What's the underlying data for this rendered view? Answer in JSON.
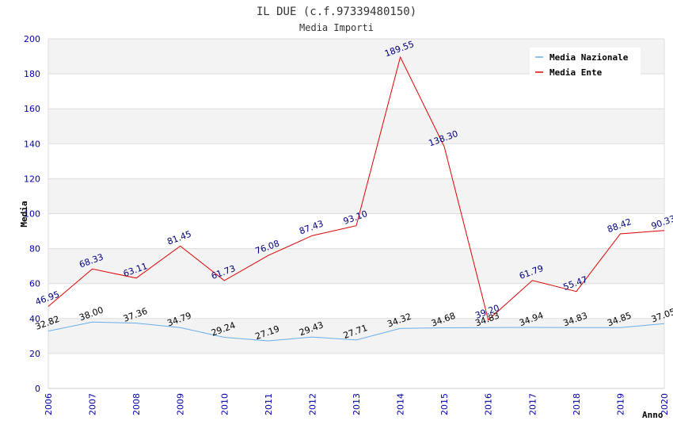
{
  "chart_data": {
    "type": "line",
    "title": "IL DUE (c.f.97339480150)",
    "subtitle": "Media Importi",
    "xlabel": "Anno",
    "ylabel": "Media",
    "ylim": [
      0,
      200
    ],
    "yticks": [
      0,
      20,
      40,
      60,
      80,
      100,
      120,
      140,
      160,
      180,
      200
    ],
    "x": [
      "2006",
      "2007",
      "2008",
      "2009",
      "2010",
      "2011",
      "2012",
      "2013",
      "2014",
      "2015",
      "2016",
      "2017",
      "2018",
      "2019",
      "2020"
    ],
    "series": [
      {
        "name": "Media Nazionale",
        "color": "#6aaeea",
        "values": [
          32.82,
          38.0,
          37.36,
          34.79,
          29.24,
          27.19,
          29.43,
          27.71,
          34.32,
          34.68,
          34.83,
          34.94,
          34.83,
          34.85,
          37.05
        ],
        "labels": [
          "32.82",
          "38.00",
          "37.36",
          "34.79",
          "29.24",
          "27.19",
          "29.43",
          "27.71",
          "34.32",
          "34.68",
          "34.83",
          "34.94",
          "34.83",
          "34.85",
          "37.05"
        ]
      },
      {
        "name": "Media Ente",
        "color": "#dd0000",
        "values": [
          46.95,
          68.33,
          63.11,
          81.45,
          61.73,
          76.08,
          87.43,
          93.1,
          189.55,
          138.3,
          39.2,
          61.79,
          55.47,
          88.42,
          90.33
        ],
        "labels": [
          "46.95",
          "68.33",
          "63.11",
          "81.45",
          "61.73",
          "76.08",
          "87.43",
          "93.10",
          "189.55",
          "138.30",
          "39.20",
          "61.79",
          "55.47",
          "88.42",
          "90.33"
        ]
      }
    ],
    "legend_position": "top-right",
    "grid": true
  }
}
